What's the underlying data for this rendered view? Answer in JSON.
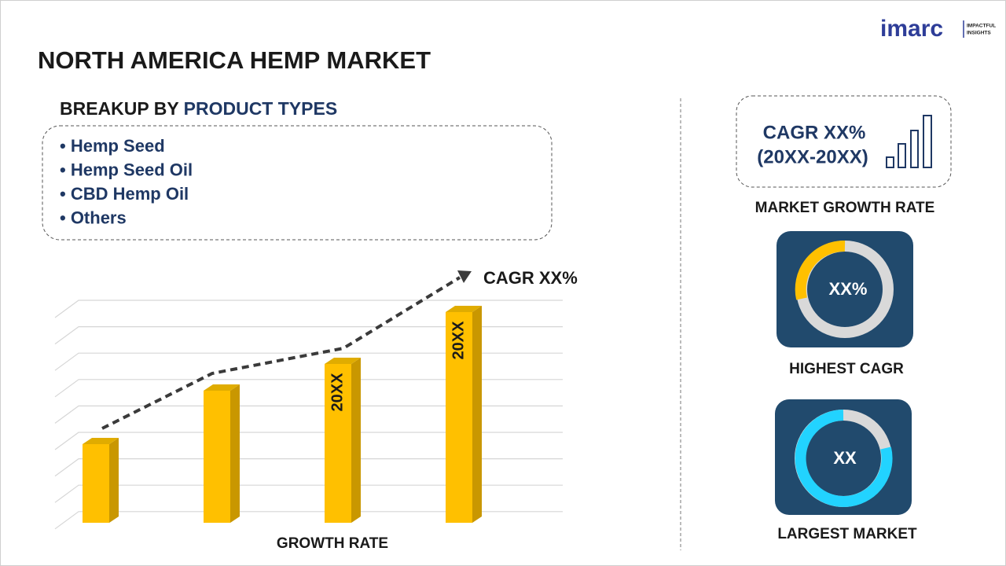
{
  "header": {
    "title": "NORTH AMERICA HEMP MARKET",
    "logo": "imarc",
    "logo_tagline": [
      "IMPACTFUL",
      "INSIGHTS"
    ]
  },
  "breakup": {
    "label": "BREAKUP BY",
    "highlight": "PRODUCT TYPES",
    "items": [
      "• Hemp Seed",
      "• Hemp Seed Oil",
      "• CBD Hemp Oil",
      "• Others"
    ]
  },
  "chart": {
    "trend_label": "CAGR XX%",
    "bar_labels": [
      "20XX",
      "20XX"
    ],
    "x_label": "GROWTH RATE"
  },
  "cards": [
    {
      "lines": [
        "CAGR XX%",
        "(20XX-20XX)"
      ],
      "caption": "MARKET GROWTH RATE"
    },
    {
      "center": "XX%",
      "caption": "HIGHEST CAGR"
    },
    {
      "center": "XX",
      "caption": "LARGEST MARKET"
    }
  ]
}
